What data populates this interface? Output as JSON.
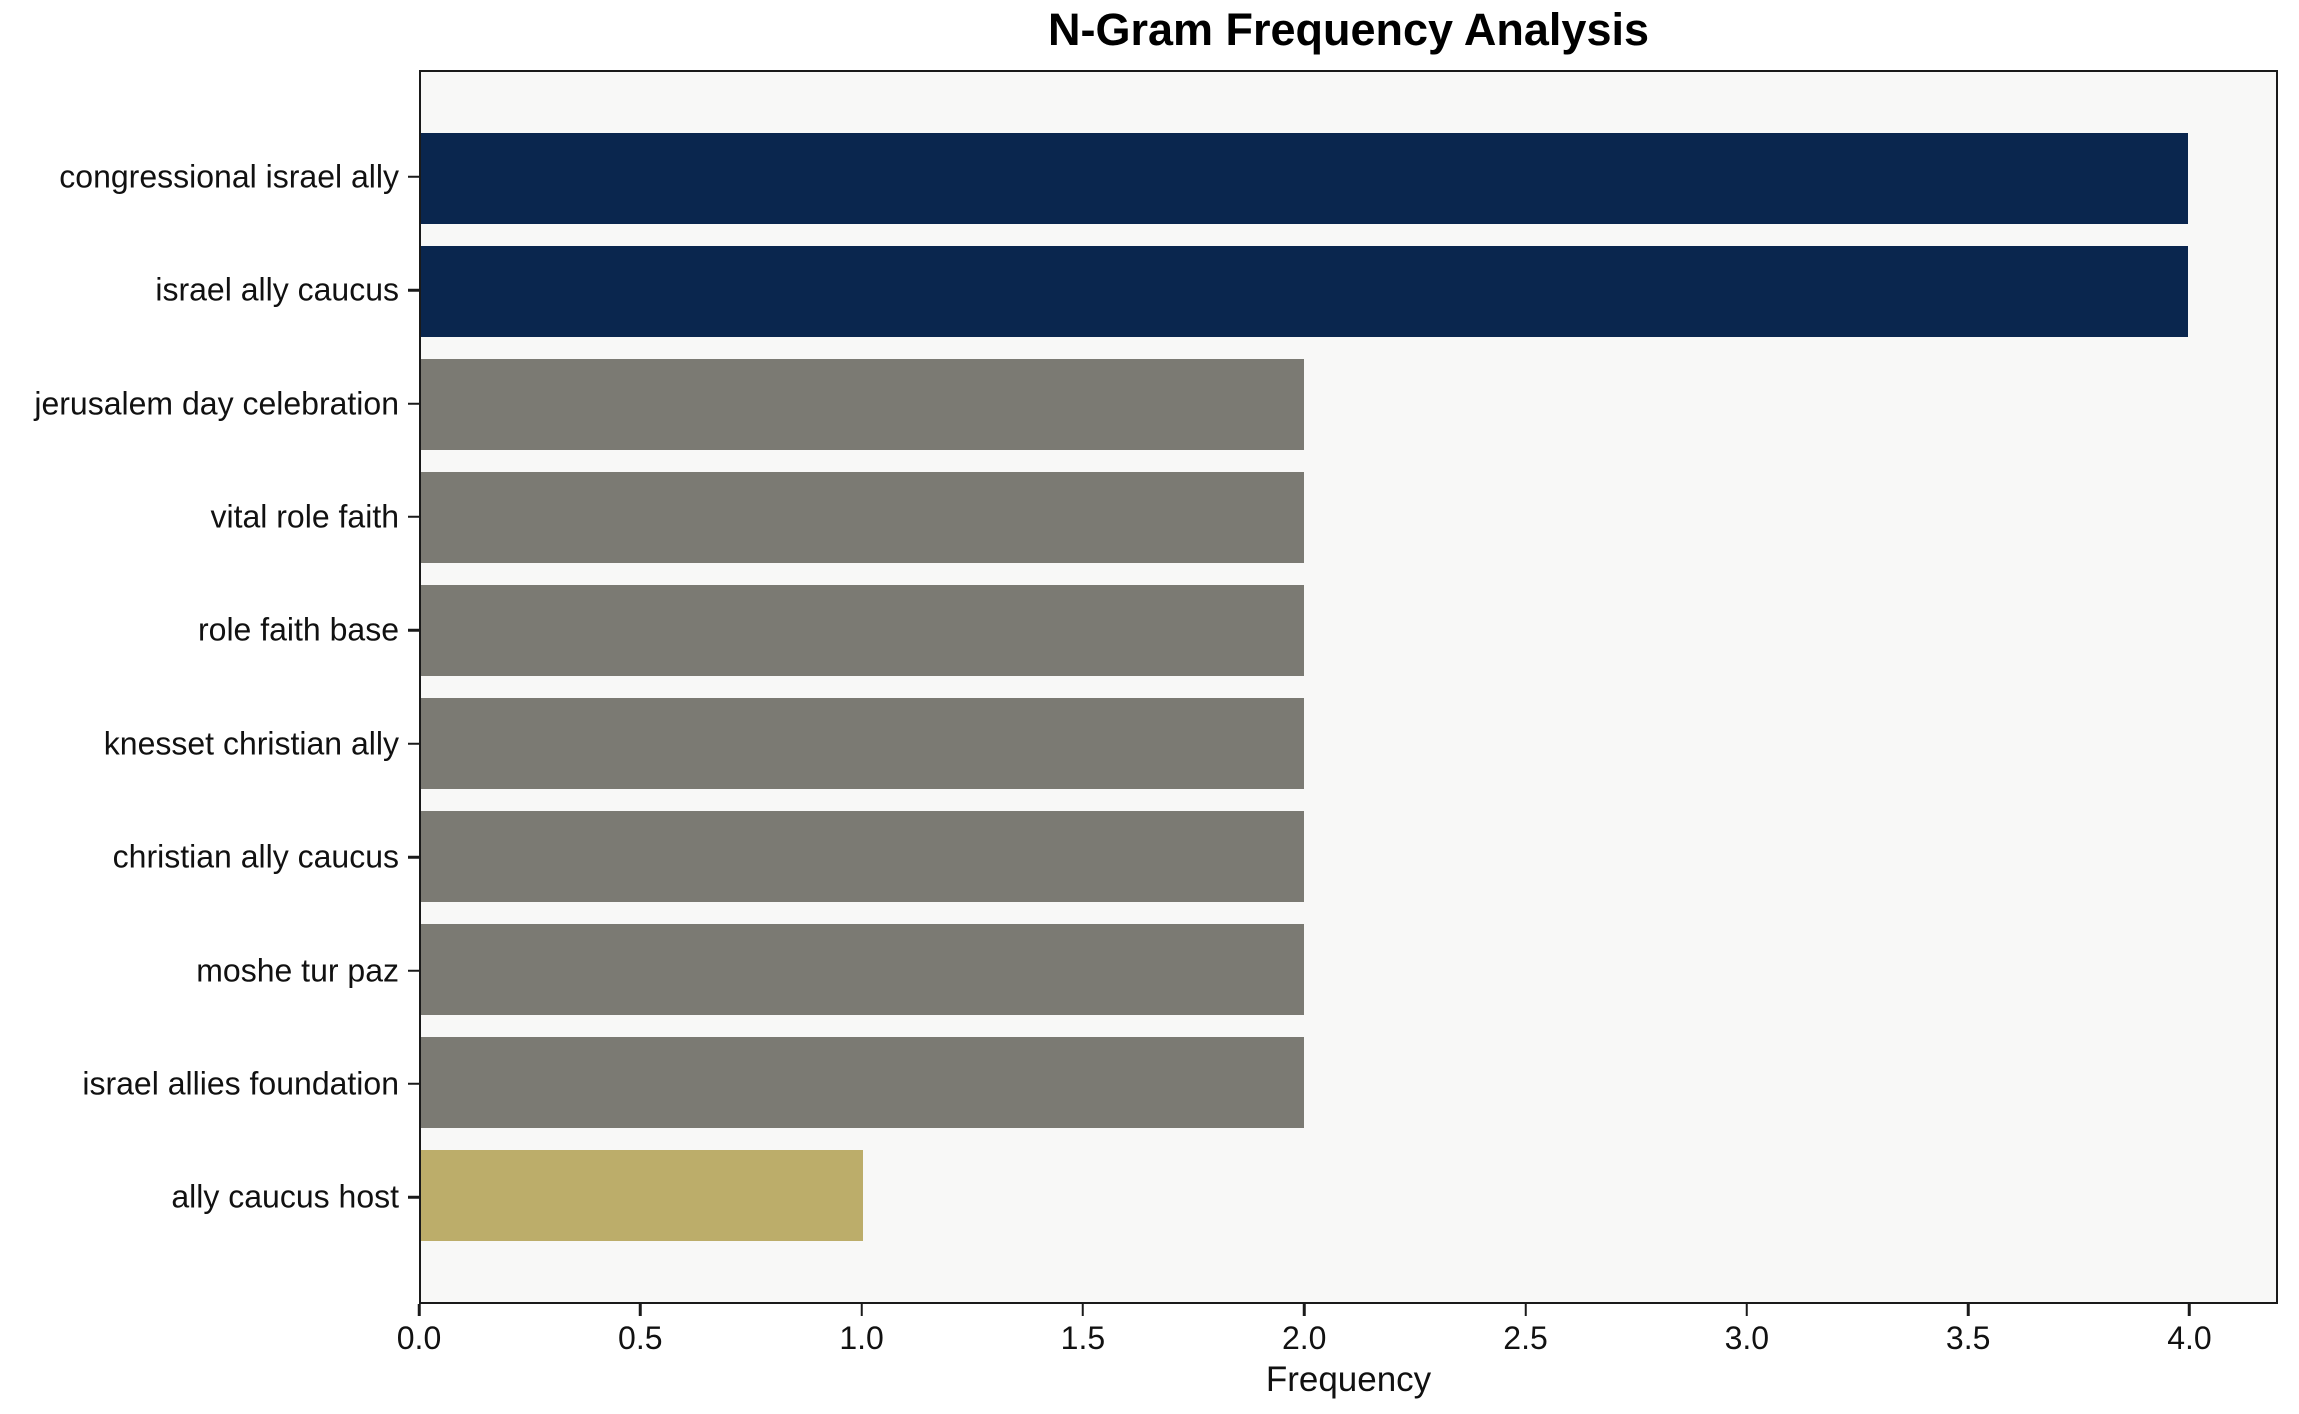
{
  "figure": {
    "background": "#ffffff",
    "plot_background": "#f8f8f7",
    "spine_color": "#1a1a1a"
  },
  "chart_data": {
    "type": "bar",
    "orientation": "horizontal",
    "title": "N-Gram Frequency Analysis",
    "xlabel": "Frequency",
    "ylabel": "",
    "categories": [
      "congressional israel ally",
      "israel ally caucus",
      "jerusalem day celebration",
      "vital role faith",
      "role faith base",
      "knesset christian ally",
      "christian ally caucus",
      "moshe tur paz",
      "israel allies foundation",
      "ally caucus host"
    ],
    "values": [
      4,
      4,
      2,
      2,
      2,
      2,
      2,
      2,
      2,
      1
    ],
    "bar_colors": [
      "#0a264e",
      "#0a264e",
      "#7b7a73",
      "#7b7a73",
      "#7b7a73",
      "#7b7a73",
      "#7b7a73",
      "#7b7a73",
      "#7b7a73",
      "#bcad6a"
    ],
    "xlim": [
      0,
      4.2
    ],
    "xticks": [
      0.0,
      0.5,
      1.0,
      1.5,
      2.0,
      2.5,
      3.0,
      3.5,
      4.0
    ],
    "xtick_labels": [
      "0.0",
      "0.5",
      "1.0",
      "1.5",
      "2.0",
      "2.5",
      "3.0",
      "3.5",
      "4.0"
    ],
    "grid": false,
    "legend": "none"
  }
}
